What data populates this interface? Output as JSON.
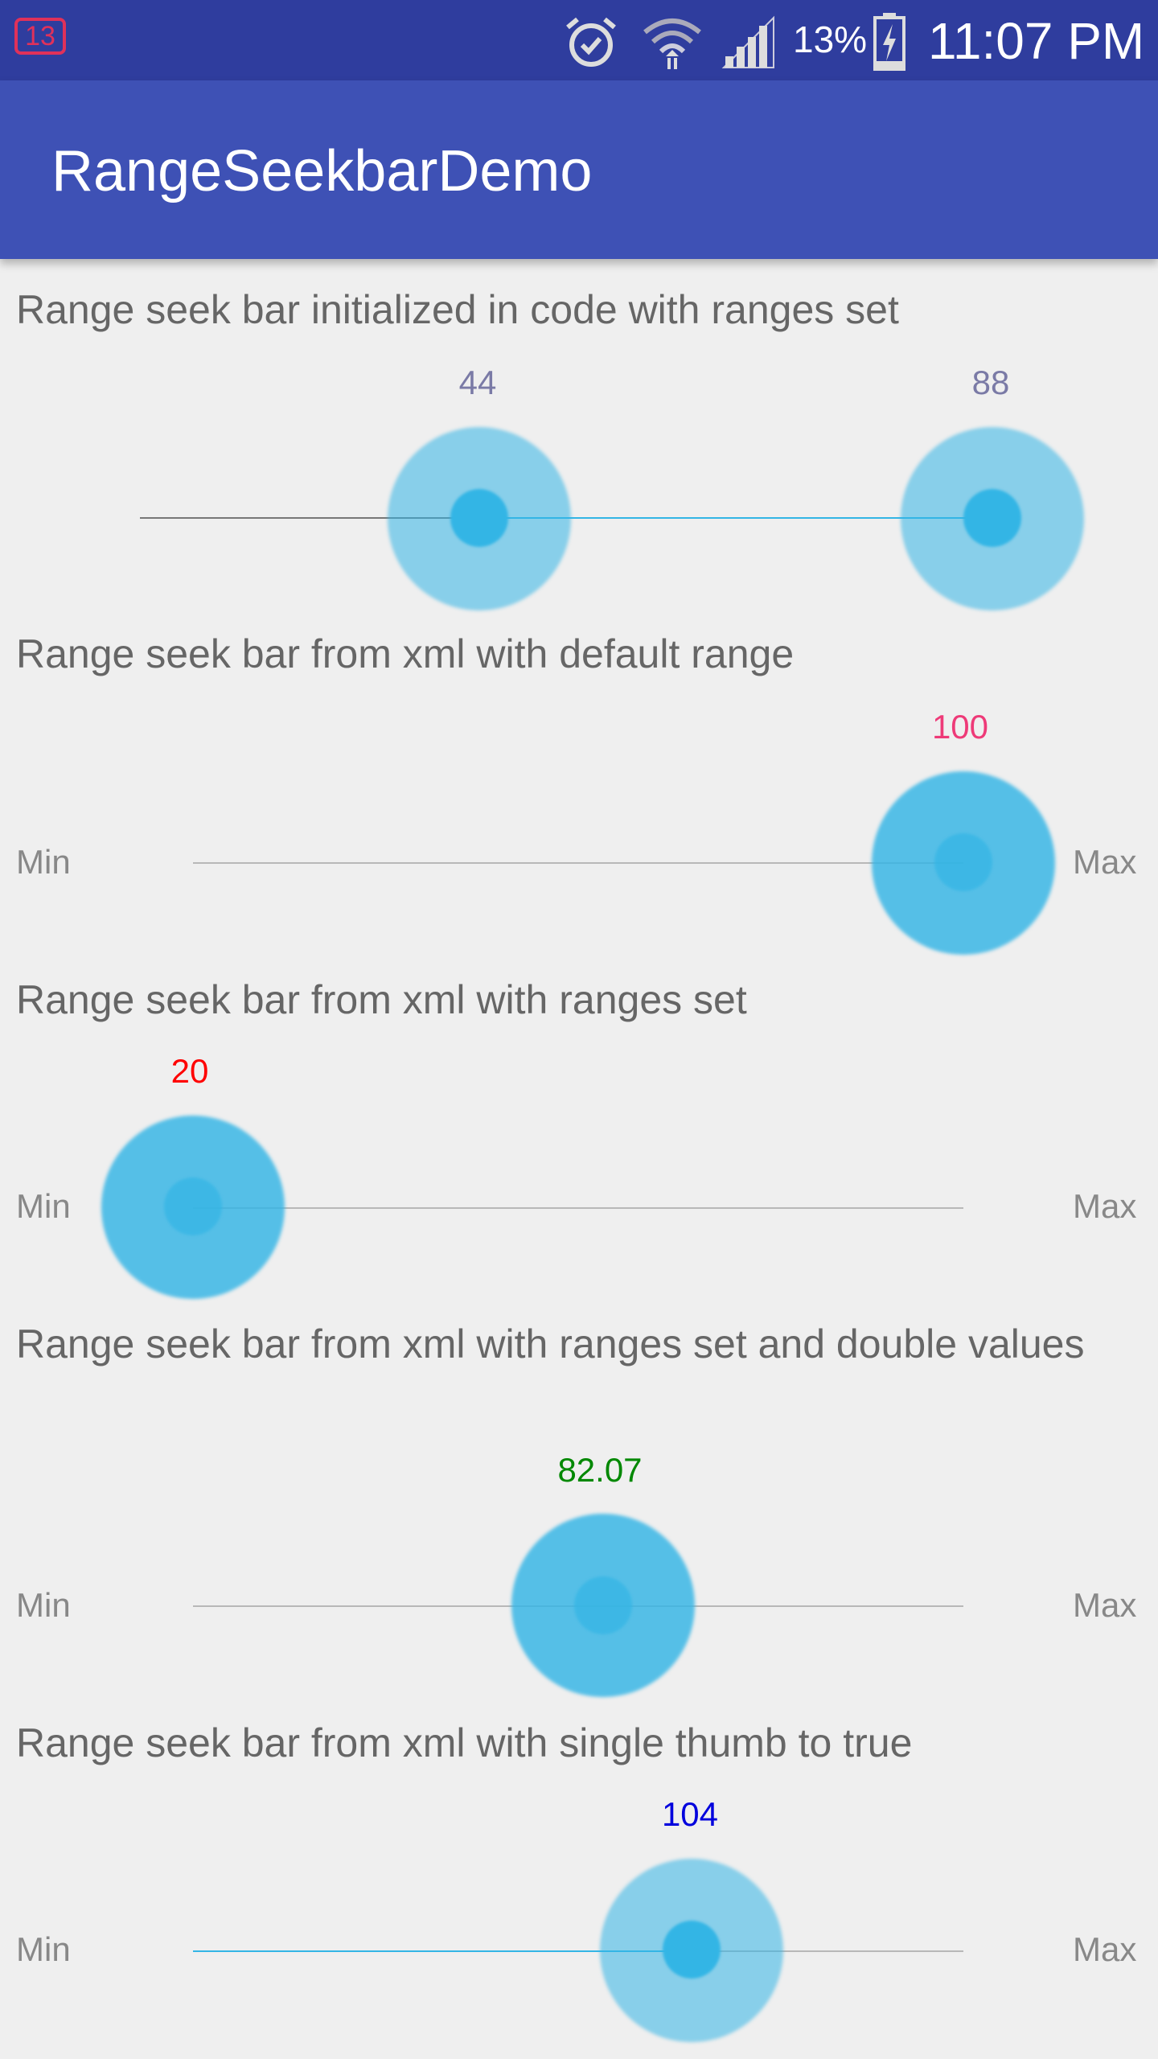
{
  "status_bar": {
    "notification_count": "13",
    "battery_percent": "13%",
    "time": "11:07 PM",
    "icons": [
      "alarm-icon",
      "wifi-icon",
      "signal-icon",
      "battery-charging-icon"
    ]
  },
  "app_bar": {
    "title": "RangeSeekbarDemo"
  },
  "colors": {
    "accent": "#33b5e5",
    "app_bar": "#3e51b5",
    "status_bar": "#2f3d9e",
    "value_1": "#7a7aa6",
    "value_2": "#ee3a78",
    "value_3": "#ff0000",
    "value_4": "#008800",
    "value_5": "#0000dd"
  },
  "seekbars": [
    {
      "label": "Range seek bar initialized in code with ranges set",
      "min_value": "44",
      "max_value": "88"
    },
    {
      "label": "Range seek bar from xml with default range",
      "value": "100",
      "min_label": "Min",
      "max_label": "Max"
    },
    {
      "label": "Range seek bar from xml with ranges set",
      "value": "20",
      "min_label": "Min",
      "max_label": "Max"
    },
    {
      "label": "Range seek bar from xml with ranges set and double values",
      "value": "82.07",
      "min_label": "Min",
      "max_label": "Max"
    },
    {
      "label": "Range seek bar from xml with single thumb to true",
      "value": "104",
      "min_label": "Min",
      "max_label": "Max"
    }
  ]
}
